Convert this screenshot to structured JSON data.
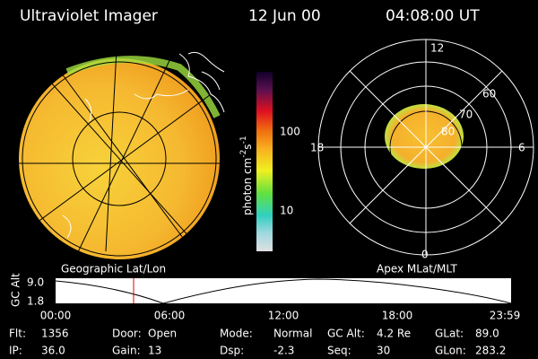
{
  "header": {
    "title": "Ultraviolet Imager",
    "date": "12 Jun 00",
    "time": "04:08:00 UT"
  },
  "colorbar": {
    "unit": "photon cm",
    "exp1": "-2",
    "unit2": "s",
    "exp2": "-1",
    "ticks": [
      "100",
      "10"
    ]
  },
  "left_panel": {
    "label": "Geographic Lat/Lon"
  },
  "right_panel": {
    "label": "Apex MLat/MLT",
    "mlt": [
      "12",
      "18",
      "6",
      "0"
    ],
    "mlat": [
      "60",
      "70",
      "80"
    ]
  },
  "timeline": {
    "y_label": "GC Alt",
    "y_ticks": [
      "9.0",
      "1.8"
    ],
    "x_ticks": [
      "00:00",
      "06:00",
      "12:00",
      "18:00",
      "23:59"
    ]
  },
  "status": [
    [
      "Flt:",
      "1356"
    ],
    [
      "Door:",
      "Open"
    ],
    [
      "Mode:",
      "Normal"
    ],
    [
      "GC Alt:",
      "4.2 Re"
    ],
    [
      "GLat:",
      "89.0"
    ],
    [
      "IP:",
      "36.0"
    ],
    [
      "Gain:",
      "13"
    ],
    [
      "Dsp:",
      "-2.3"
    ],
    [
      "Seq:",
      "30"
    ],
    [
      "GLon:",
      "283.2"
    ]
  ]
}
